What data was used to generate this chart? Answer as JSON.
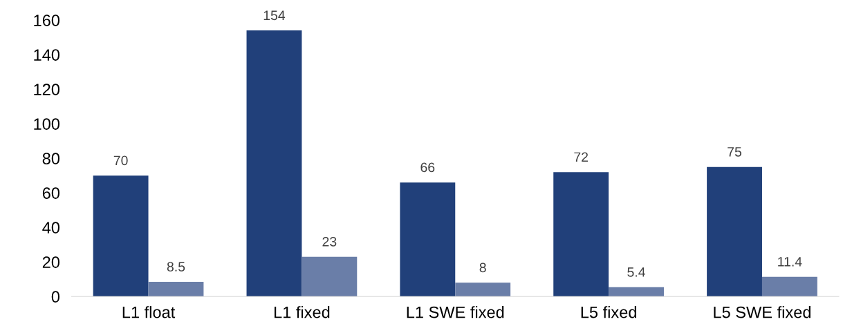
{
  "chart_data": {
    "type": "bar",
    "categories": [
      "L1 float",
      "L1 fixed",
      "L1 SWE fixed",
      "L5 fixed",
      "L5 SWE fixed"
    ],
    "series": [
      {
        "color": "#21407a",
        "values": [
          70,
          154,
          66,
          72,
          75
        ]
      },
      {
        "color": "#6a7ea8",
        "values": [
          8.5,
          23,
          8,
          5.4,
          11.4
        ]
      }
    ],
    "ylim": [
      0,
      160
    ],
    "yticks": [
      0,
      20,
      40,
      60,
      80,
      100,
      120,
      140,
      160
    ],
    "data_labels": true
  }
}
